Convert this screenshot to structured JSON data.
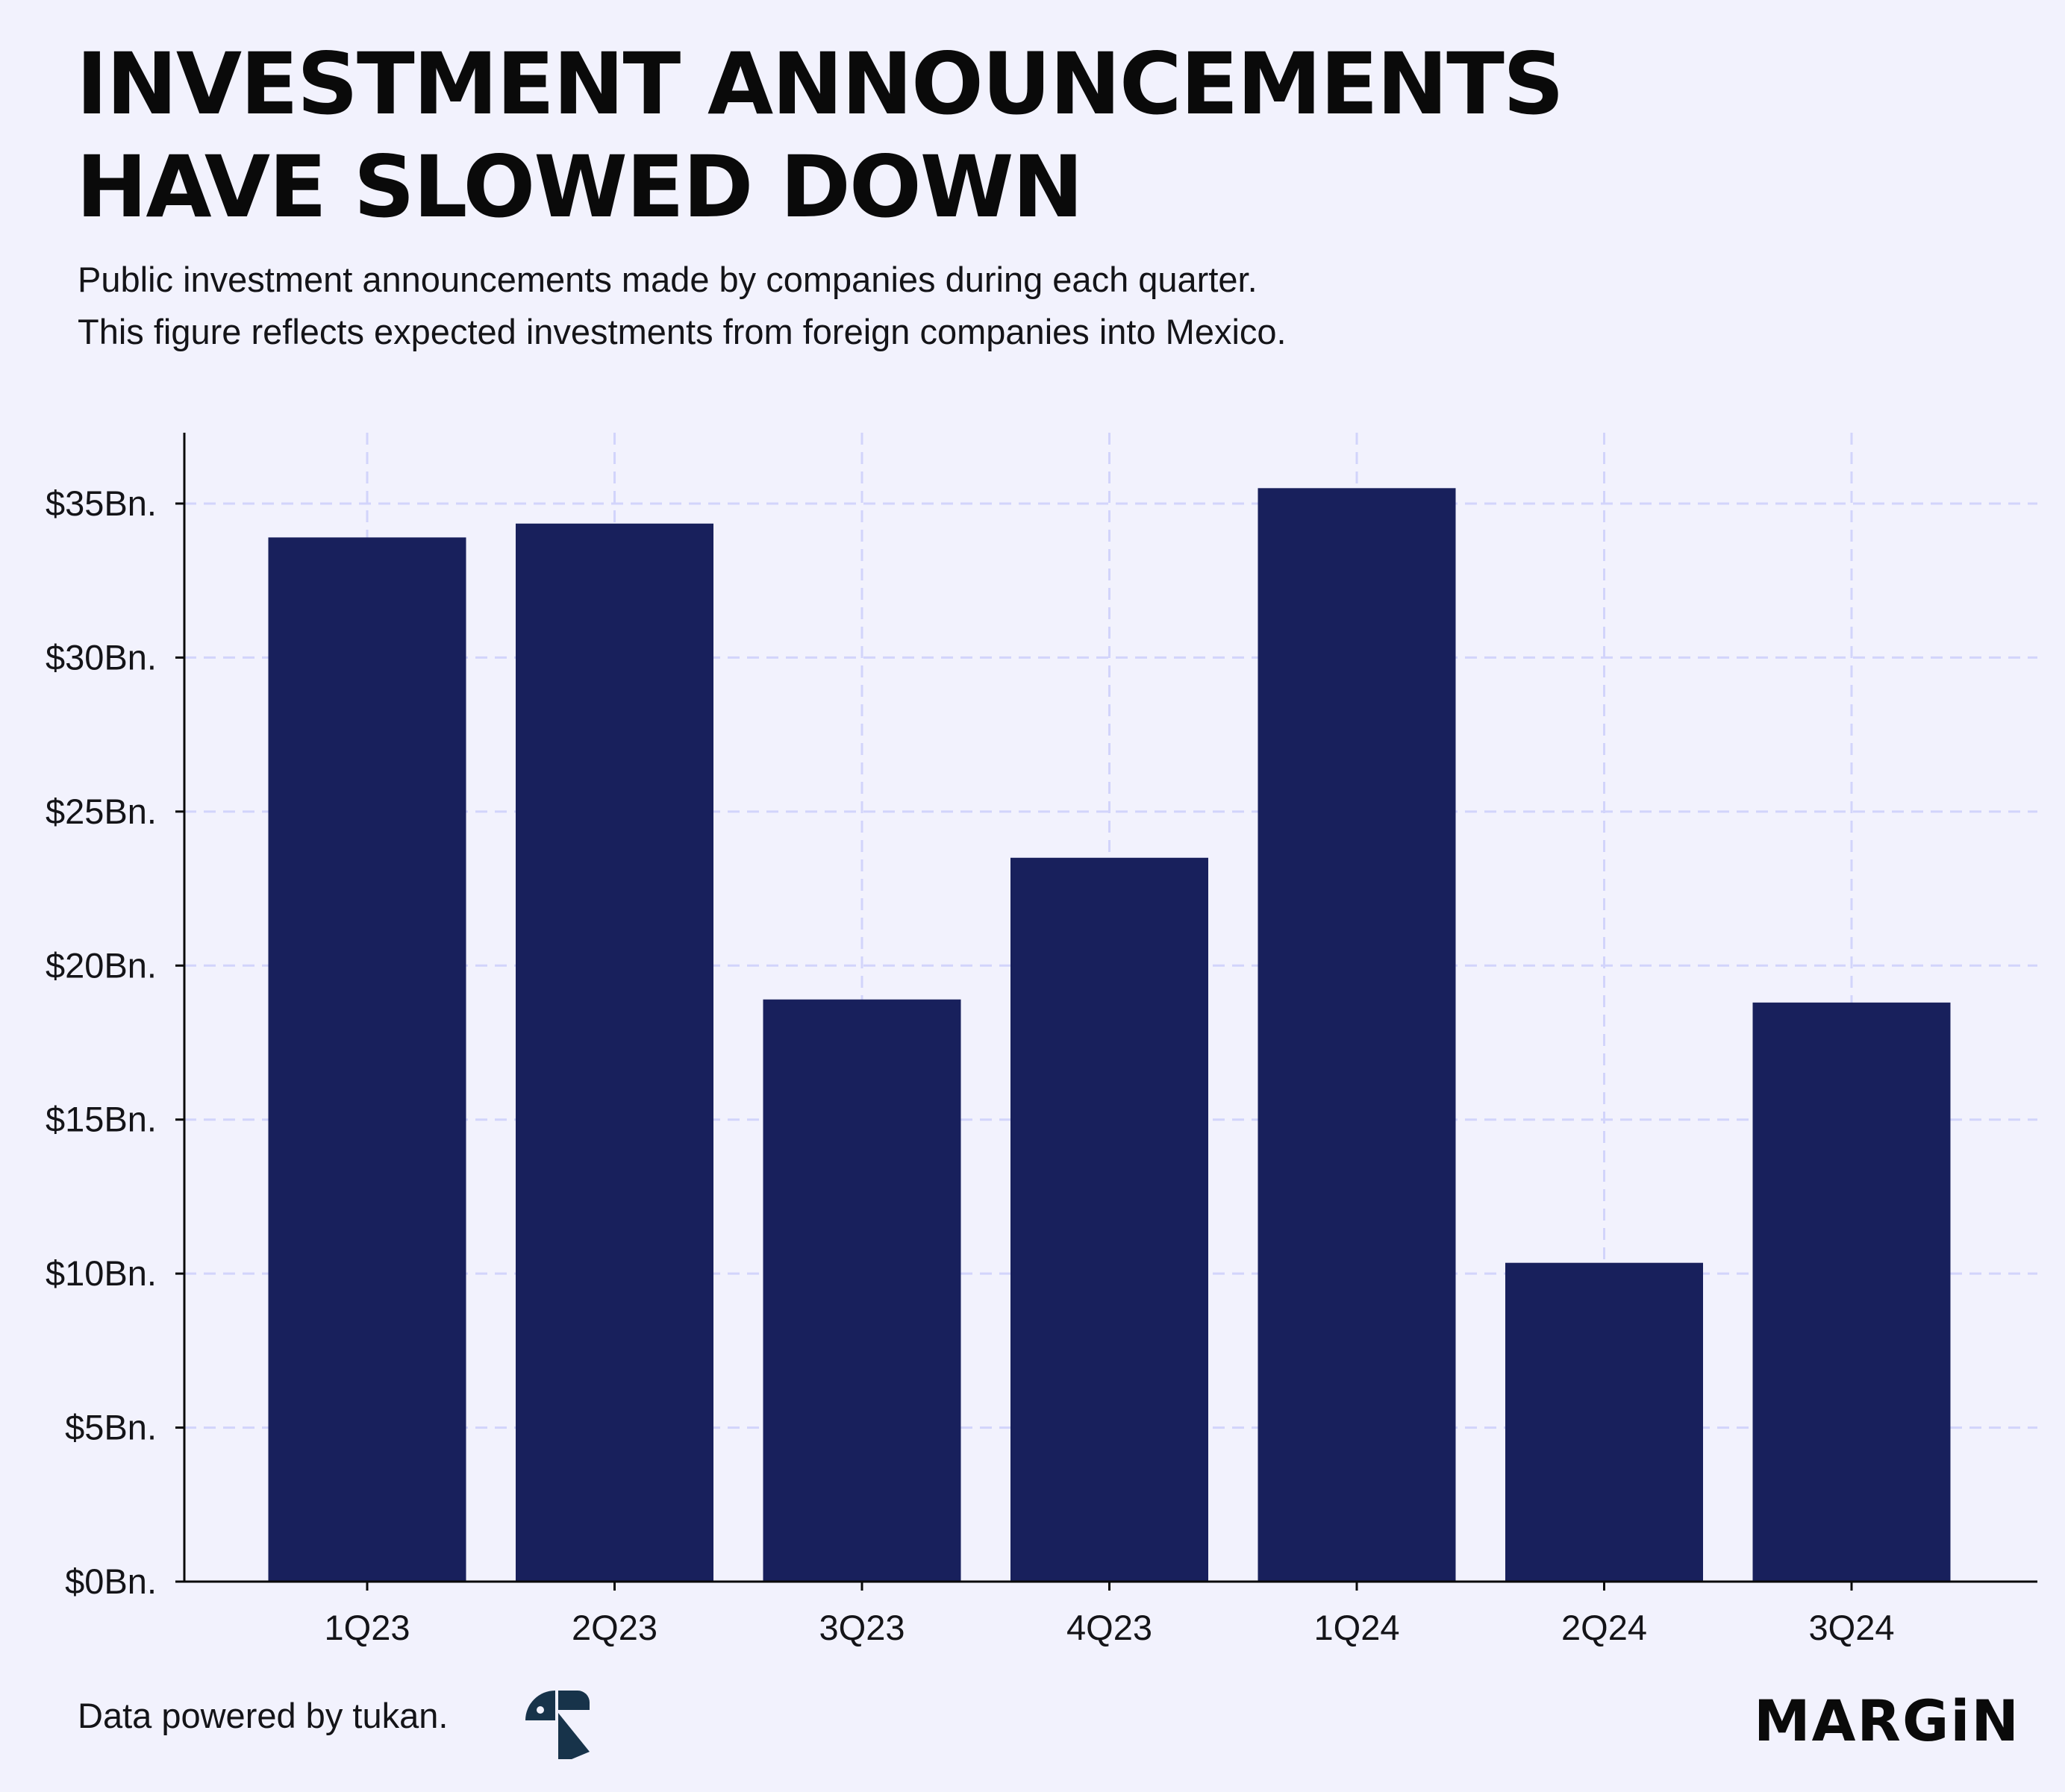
{
  "header": {
    "title_line1": "INVESTMENT ANNOUNCEMENTS",
    "title_line2": "HAVE SLOWED DOWN",
    "subtitle_line1": "Public investment announcements made by companies during each quarter.",
    "subtitle_line2": "This figure reflects expected investments from foreign companies into Mexico."
  },
  "footer": {
    "source": "Data powered by tukan.",
    "source_logo_icon": "tukan-logo-icon",
    "brand": "MARGiN"
  },
  "colors": {
    "background": "#f2f2fd",
    "bar": "#18205c",
    "grid": "#d2d4fb",
    "axis": "#0a0a0a"
  },
  "chart_data": {
    "type": "bar",
    "categories": [
      "1Q23",
      "2Q23",
      "3Q23",
      "4Q23",
      "1Q24",
      "2Q24",
      "3Q24"
    ],
    "series": [
      {
        "values": [
          33.9,
          34.35,
          18.9,
          23.5,
          35.5,
          10.35,
          18.8
        ]
      }
    ],
    "ylim": [
      0,
      37.3
    ],
    "yticks": [
      0,
      5,
      10,
      15,
      20,
      25,
      30,
      35
    ],
    "ytick_labels": [
      "$0Bn.",
      "$5Bn.",
      "$10Bn.",
      "$15Bn.",
      "$20Bn.",
      "$25Bn.",
      "$30Bn.",
      "$35Bn."
    ],
    "xlabel": "",
    "ylabel": "",
    "grid": true,
    "grid_style": "dashed",
    "legend": "none"
  }
}
